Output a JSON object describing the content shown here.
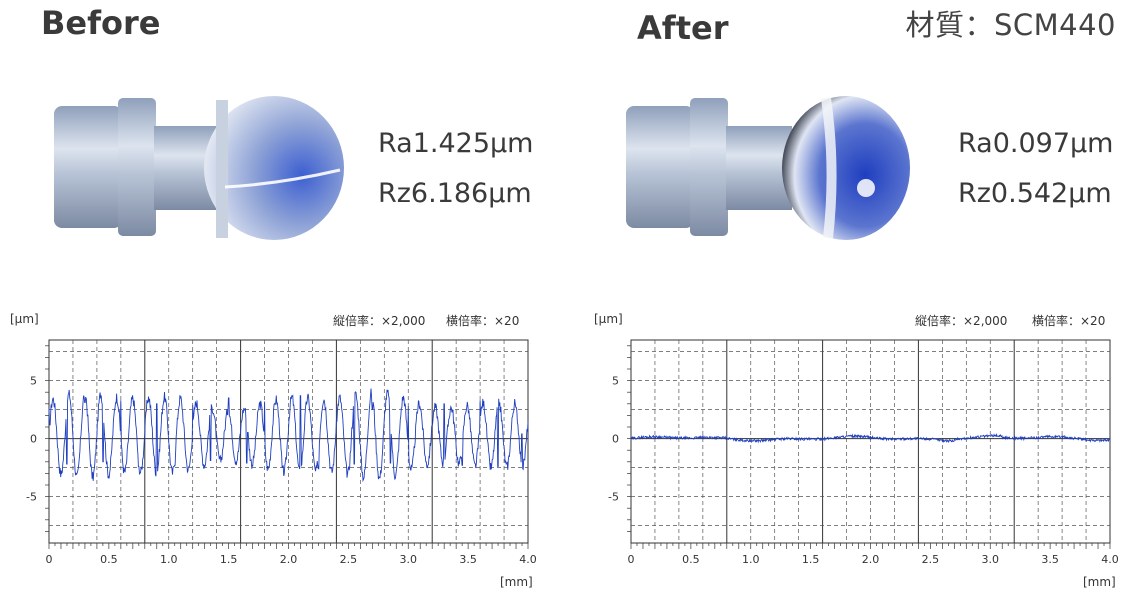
{
  "material": "材質：SCM440",
  "panels": [
    {
      "heading": "Before",
      "ra": "Ra1.425μm",
      "rz": "Rz6.186μm",
      "unit_y": "[μm]",
      "unit_x": "[mm]",
      "v_mag": "縦倍率：×2,000",
      "h_mag": "横倍率：×20"
    },
    {
      "heading": "After",
      "ra": "Ra0.097μm",
      "rz": "Rz0.542μm",
      "unit_y": "[μm]",
      "unit_x": "[mm]",
      "v_mag": "縦倍率：×2,000",
      "h_mag": "横倍率：×20"
    }
  ],
  "colors": {
    "trace": "#1f3fbf",
    "grid": "#555555"
  },
  "chart_data": [
    {
      "type": "line",
      "title": "Before",
      "xlabel": "[mm]",
      "ylabel": "[μm]",
      "xlim": [
        0,
        4.0
      ],
      "ylim": [
        -9,
        8.5
      ],
      "x_ticks": [
        0,
        0.5,
        1.0,
        1.5,
        2.0,
        2.5,
        3.0,
        3.5,
        4.0
      ],
      "x_tick_labels": [
        "0",
        "0.5",
        "1.0",
        "1.5",
        "2.0",
        "2.5",
        "3.0",
        "3.5",
        "4.0"
      ],
      "y_ticks": [
        5,
        0,
        -5
      ],
      "y_tick_labels": [
        "5",
        "0",
        "-5"
      ],
      "grid": true,
      "series": [
        {
          "profile": "periodic",
          "period_mm": 0.133,
          "amplitude_um": 3.0,
          "offset_um": 0.3,
          "x": [
            0.0,
            0.15,
            0.3,
            0.45,
            0.6,
            0.75,
            0.9,
            1.05,
            1.2,
            1.35,
            1.5,
            1.65,
            1.8,
            1.95,
            2.1,
            2.25,
            2.4,
            2.55,
            2.7,
            2.85,
            3.0,
            3.15,
            3.3,
            3.45,
            3.6,
            3.75,
            3.9,
            3.95
          ],
          "y": [
            2.6,
            -2.2,
            3.1,
            -2.0,
            3.3,
            -2.4,
            3.0,
            -2.3,
            2.9,
            -1.9,
            3.5,
            -2.1,
            3.2,
            -2.5,
            3.7,
            -2.6,
            1.6,
            -2.2,
            2.5,
            -2.1,
            2.8,
            -2.0,
            3.0,
            -2.3,
            3.3,
            -2.4,
            2.7,
            0.4
          ]
        }
      ]
    },
    {
      "type": "line",
      "title": "After",
      "xlabel": "[mm]",
      "ylabel": "[μm]",
      "xlim": [
        0,
        4.0
      ],
      "ylim": [
        -9,
        8.5
      ],
      "x_ticks": [
        0,
        0.5,
        1.0,
        1.5,
        2.0,
        2.5,
        3.0,
        3.5,
        4.0
      ],
      "x_tick_labels": [
        "0",
        "0.5",
        "1.0",
        "1.5",
        "2.0",
        "2.5",
        "3.0",
        "3.5",
        "4.0"
      ],
      "y_ticks": [
        5,
        0,
        -5
      ],
      "y_tick_labels": [
        "5",
        "0",
        "-5"
      ],
      "grid": true,
      "series": [
        {
          "profile": "flat",
          "amplitude_um": 0.25,
          "offset_um": 0.0,
          "x": [
            0.0,
            0.25,
            0.5,
            0.75,
            1.0,
            1.25,
            1.5,
            1.75,
            2.0,
            2.25,
            2.5,
            2.75,
            2.9,
            3.25,
            3.5,
            3.75,
            4.0
          ],
          "y": [
            0.0,
            -0.1,
            0.2,
            -0.1,
            0.1,
            0.0,
            0.1,
            0.0,
            -0.1,
            0.0,
            -0.1,
            0.0,
            0.2,
            -0.1,
            0.0,
            -0.1,
            -0.2
          ]
        }
      ]
    }
  ]
}
